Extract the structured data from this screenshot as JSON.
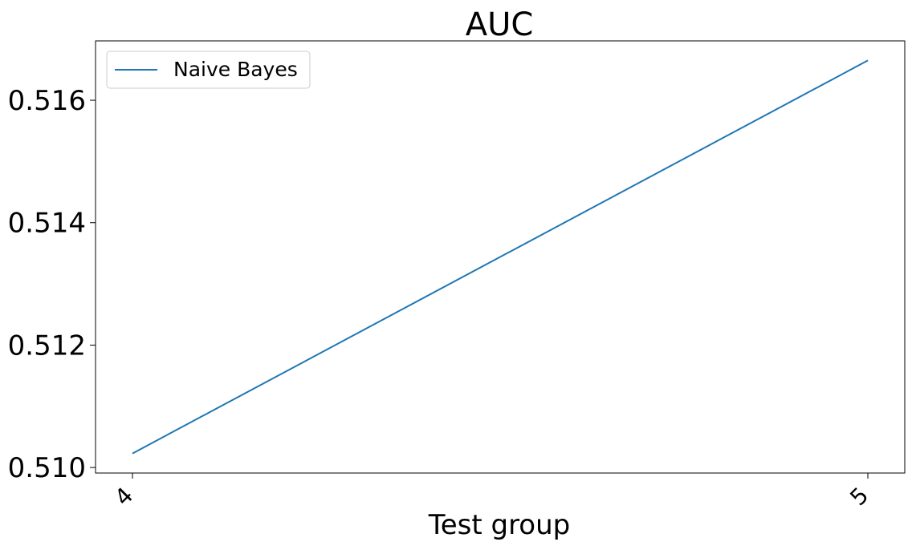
{
  "chart_data": {
    "type": "line",
    "title": "AUC",
    "xlabel": "Test group",
    "ylabel": "",
    "x": [
      "4",
      "5"
    ],
    "series": [
      {
        "name": "Naive Bayes",
        "color": "#1f77b4",
        "values": [
          0.51023,
          0.51665
        ]
      }
    ],
    "yticks": [
      0.51,
      0.512,
      0.514,
      0.516
    ],
    "ytick_labels": [
      "0.510",
      "0.512",
      "0.514",
      "0.516"
    ],
    "xtick_labels": [
      "4",
      "5"
    ],
    "ylim": [
      0.50991,
      0.51697
    ],
    "grid": false,
    "legend": {
      "placement": "upper-left"
    }
  }
}
